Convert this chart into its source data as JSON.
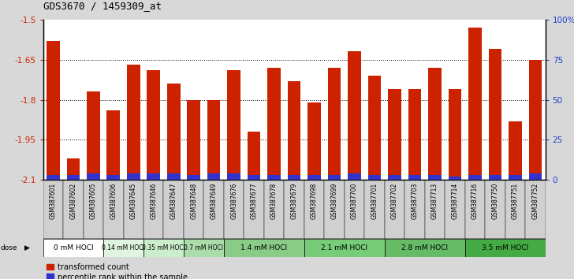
{
  "title": "GDS3670 / 1459309_at",
  "samples": [
    "GSM387601",
    "GSM387602",
    "GSM387605",
    "GSM387606",
    "GSM387645",
    "GSM387646",
    "GSM387647",
    "GSM387648",
    "GSM387649",
    "GSM387676",
    "GSM387677",
    "GSM387678",
    "GSM387679",
    "GSM387698",
    "GSM387699",
    "GSM387700",
    "GSM387701",
    "GSM387702",
    "GSM387703",
    "GSM387713",
    "GSM387714",
    "GSM387716",
    "GSM387750",
    "GSM387751",
    "GSM387752"
  ],
  "transformed_count": [
    -1.58,
    -2.02,
    -1.77,
    -1.84,
    -1.67,
    -1.69,
    -1.74,
    -1.8,
    -1.8,
    -1.69,
    -1.92,
    -1.68,
    -1.73,
    -1.81,
    -1.68,
    -1.62,
    -1.71,
    -1.76,
    -1.76,
    -1.68,
    -1.76,
    -1.53,
    -1.61,
    -1.88,
    -1.65
  ],
  "percentile_rank": [
    3,
    3,
    4,
    3,
    4,
    4,
    4,
    3,
    4,
    4,
    3,
    3,
    3,
    3,
    3,
    4,
    3,
    3,
    3,
    3,
    2,
    3,
    3,
    3,
    4
  ],
  "bar_color": "#cc2200",
  "percentile_color": "#3333cc",
  "ylim_left": [
    -2.1,
    -1.5
  ],
  "ylim_right": [
    0,
    100
  ],
  "yticks_left": [
    -2.1,
    -1.95,
    -1.8,
    -1.65,
    -1.5
  ],
  "yticks_right": [
    0,
    25,
    50,
    75,
    100
  ],
  "ytick_labels_right": [
    "0",
    "25",
    "50",
    "75",
    "100%"
  ],
  "dose_groups": [
    {
      "label": "0 mM HOCl",
      "start": 0,
      "end": 3,
      "color": "#ffffff"
    },
    {
      "label": "0.14 mM HOCl",
      "start": 3,
      "end": 5,
      "color": "#e0f5e0"
    },
    {
      "label": "0.35 mM HOCl",
      "start": 5,
      "end": 7,
      "color": "#cceecc"
    },
    {
      "label": "0.7 mM HOCl",
      "start": 7,
      "end": 9,
      "color": "#aaddaa"
    },
    {
      "label": "1.4 mM HOCl",
      "start": 9,
      "end": 13,
      "color": "#88cc88"
    },
    {
      "label": "2.1 mM HOCl",
      "start": 13,
      "end": 17,
      "color": "#77cc77"
    },
    {
      "label": "2.8 mM HOCl",
      "start": 17,
      "end": 21,
      "color": "#66bb66"
    },
    {
      "label": "3.5 mM HOCl",
      "start": 21,
      "end": 25,
      "color": "#44aa44"
    }
  ],
  "axis_color_left": "#cc2200",
  "axis_color_right": "#2244cc",
  "grid_dotted_color": "#555555",
  "gridlines": [
    -1.65,
    -1.8,
    -1.95
  ],
  "xtick_bg": "#d0d0d0",
  "fig_bg": "#d8d8d8",
  "plot_bg": "#ffffff"
}
